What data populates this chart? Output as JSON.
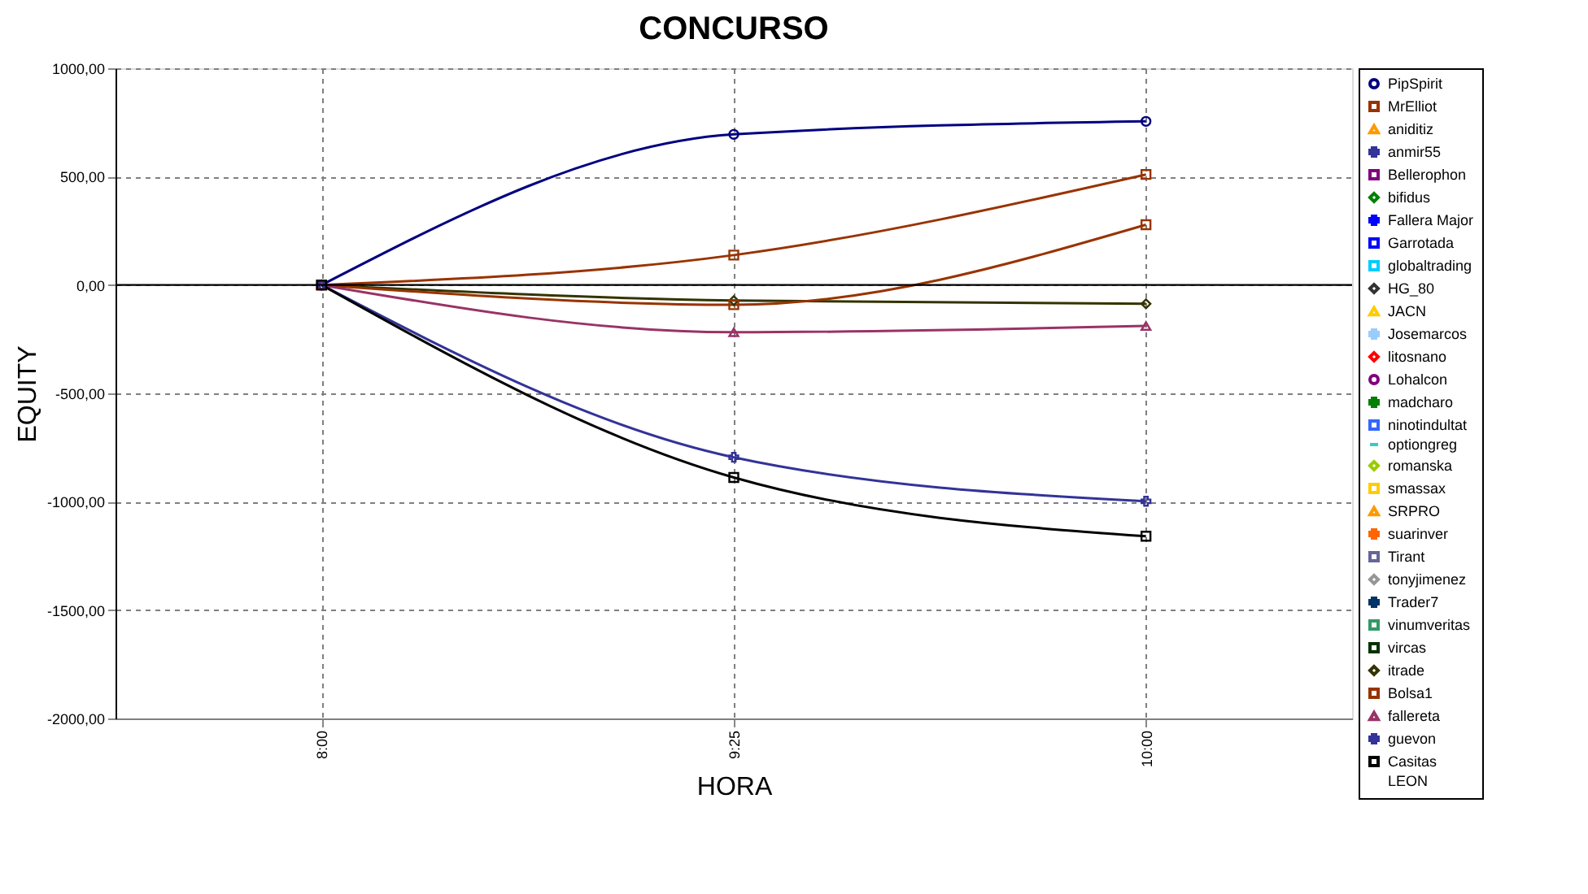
{
  "chart_data": {
    "type": "line",
    "title": "CONCURSO",
    "xlabel": "HORA",
    "ylabel": "EQUITY",
    "categories": [
      "8:00",
      "9:25",
      "10:00"
    ],
    "ylim": [
      -2000,
      1000
    ],
    "yticks": [
      {
        "value": -2000,
        "label": "-2000,00"
      },
      {
        "value": -1500,
        "label": "-1500,00"
      },
      {
        "value": -1000,
        "label": "-1000,00"
      },
      {
        "value": -500,
        "label": "-500,00"
      },
      {
        "value": 0,
        "label": "0,00"
      },
      {
        "value": 500,
        "label": "500,00"
      },
      {
        "value": 1000,
        "label": "1000,00"
      }
    ],
    "grid": true,
    "legend": "right",
    "line_style": "solid",
    "ref_lines": [
      {
        "axis": "y",
        "value": 0,
        "color": "#000000"
      }
    ],
    "series": [
      {
        "name": "PipSpirit",
        "color": "#000080",
        "marker": "circle",
        "values": [
          0,
          695,
          755
        ]
      },
      {
        "name": "MrElliot",
        "color": "#993300",
        "marker": "square",
        "values": [
          0,
          138,
          510
        ]
      },
      {
        "name": "aniditiz",
        "color": "#ff9900",
        "marker": "triangle",
        "values": [
          null,
          null,
          null
        ]
      },
      {
        "name": "anmir55",
        "color": "#333399",
        "marker": "cross",
        "values": [
          null,
          null,
          null
        ]
      },
      {
        "name": "Bellerophon",
        "color": "#800080",
        "marker": "square",
        "values": [
          null,
          null,
          null
        ]
      },
      {
        "name": "bifidus",
        "color": "#008000",
        "marker": "diamond",
        "values": [
          null,
          null,
          null
        ]
      },
      {
        "name": "Fallera Major",
        "color": "#0000ff",
        "marker": "cross",
        "values": [
          null,
          null,
          null
        ]
      },
      {
        "name": "Garrotada",
        "color": "#0000ff",
        "marker": "square",
        "values": [
          null,
          null,
          null
        ]
      },
      {
        "name": "globaltrading",
        "color": "#00ccff",
        "marker": "square",
        "values": [
          null,
          null,
          null
        ]
      },
      {
        "name": "HG_80",
        "color": "#333333",
        "marker": "diamond",
        "values": [
          null,
          null,
          null
        ]
      },
      {
        "color": "#808000",
        "marker": "square",
        "values": [
          null,
          null,
          null
        ]
      },
      {
        "name": "JACN",
        "color": "#ffcc00",
        "marker": "triangle",
        "values": [
          null,
          null,
          null
        ]
      },
      {
        "name": "Josemarcos",
        "color": "#99ccff",
        "marker": "cross",
        "values": [
          null,
          null,
          null
        ]
      },
      {
        "name": "litosnano",
        "color": "#ff0000",
        "marker": "diamond",
        "values": [
          null,
          null,
          null
        ]
      },
      {
        "name": "Lohalcon",
        "color": "#800080",
        "marker": "circle",
        "values": [
          null,
          null,
          null
        ]
      },
      {
        "name": "madcharo",
        "color": "#008000",
        "marker": "cross",
        "values": [
          null,
          null,
          null
        ]
      },
      {
        "name": "ninotindultat",
        "color": "#3366ff",
        "marker": "square",
        "values": [
          null,
          null,
          null
        ]
      },
      {
        "name": "optiongreg",
        "color": "#33cccc",
        "marker": "none",
        "values": [
          null,
          null,
          null
        ]
      },
      {
        "name": "romanska",
        "color": "#99cc00",
        "marker": "diamond",
        "values": [
          null,
          null,
          null
        ]
      },
      {
        "name": "smassax",
        "color": "#ffcc00",
        "marker": "square",
        "values": [
          null,
          null,
          null
        ]
      },
      {
        "name": "SRPRO",
        "color": "#ff9900",
        "marker": "triangle",
        "values": [
          null,
          null,
          null
        ]
      },
      {
        "name": "suarinver",
        "color": "#ff6600",
        "marker": "cross",
        "values": [
          null,
          null,
          null
        ]
      },
      {
        "name": "Tirant",
        "color": "#666699",
        "marker": "square",
        "values": [
          null,
          null,
          null
        ]
      },
      {
        "name": "tonyjimenez",
        "color": "#969696",
        "marker": "diamond",
        "values": [
          null,
          null,
          null
        ]
      },
      {
        "name": "Trader7",
        "color": "#003366",
        "marker": "cross",
        "values": [
          null,
          null,
          null
        ]
      },
      {
        "name": "vinumveritas",
        "color": "#339966",
        "marker": "square",
        "values": [
          null,
          null,
          null
        ]
      },
      {
        "name": "vircas",
        "color": "#003300",
        "marker": "square",
        "values": [
          null,
          null,
          null
        ]
      },
      {
        "name": "itrade",
        "color": "#333300",
        "marker": "diamond",
        "values": [
          0,
          -72,
          -87
        ]
      },
      {
        "name": "Bolsa1",
        "color": "#993300",
        "marker": "square",
        "values": [
          0,
          -91,
          278
        ]
      },
      {
        "name": "fallereta",
        "color": "#993366",
        "marker": "triangle",
        "values": [
          0,
          -218,
          -189
        ]
      },
      {
        "name": "guevon",
        "color": "#333399",
        "marker": "cross",
        "values": [
          0,
          -795,
          -998
        ]
      },
      {
        "name": "Casitas",
        "color": "#000000",
        "marker": "square",
        "values": [
          0,
          -888,
          -1159
        ]
      },
      {
        "name": "LEON",
        "color": null,
        "marker": "none",
        "values": [
          null,
          null,
          null
        ]
      }
    ]
  }
}
